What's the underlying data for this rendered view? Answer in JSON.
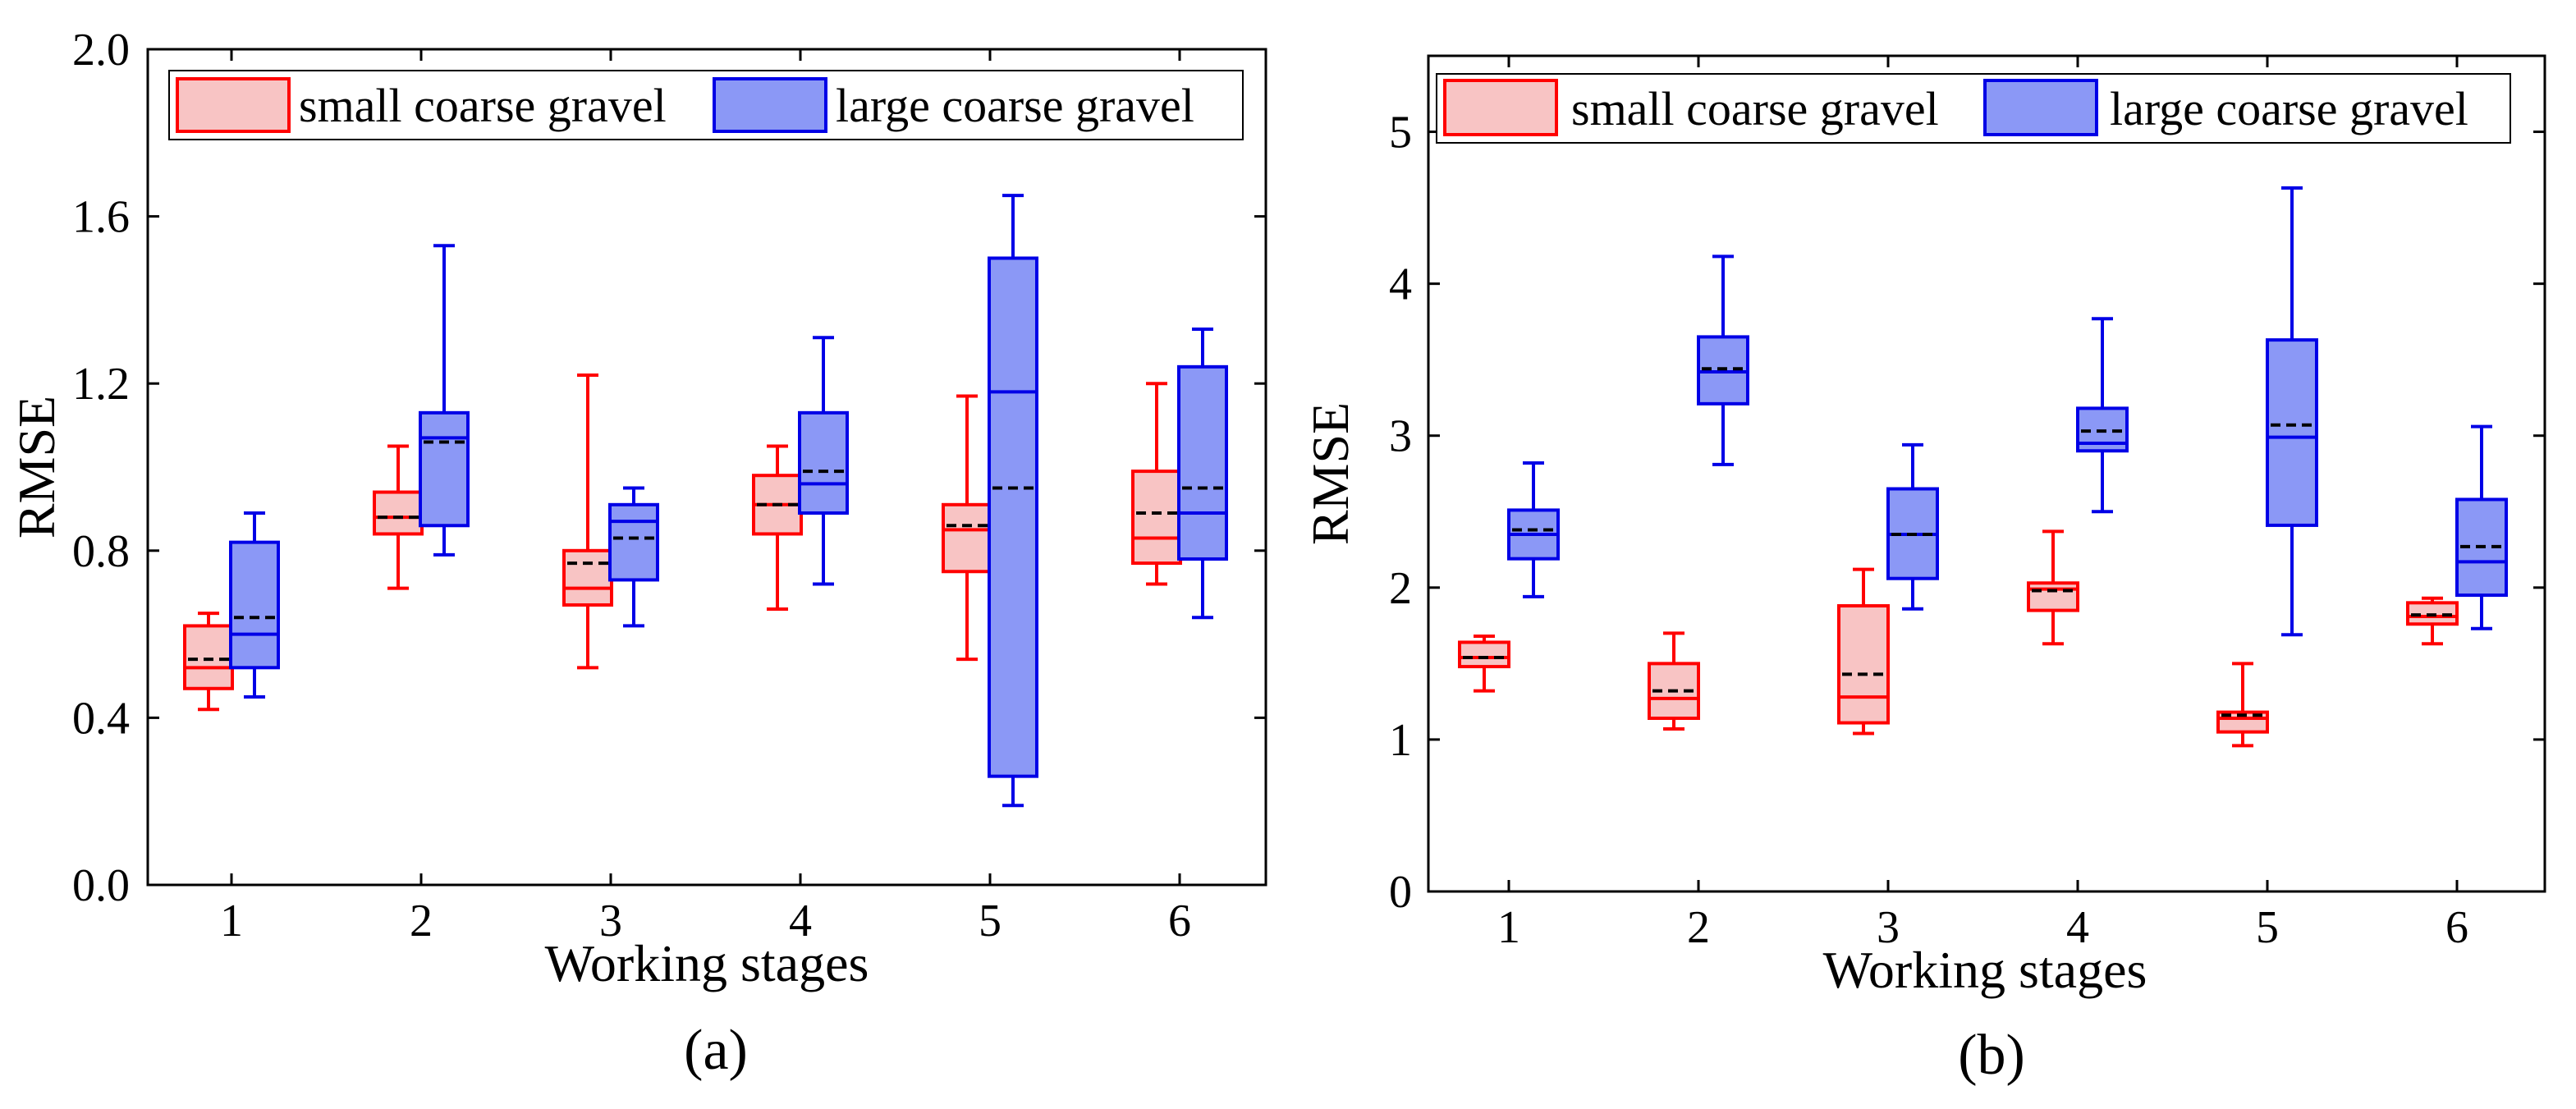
{
  "colors": {
    "small_stroke": "#ff0000",
    "small_fill": "#f8c4c4",
    "large_stroke": "#0000e6",
    "large_fill": "#8b98f6"
  },
  "chart_data": [
    {
      "type": "box",
      "caption": "(a)",
      "xlabel": "Working stages",
      "ylabel": "RMSE",
      "categories": [
        "1",
        "2",
        "3",
        "4",
        "5",
        "6"
      ],
      "ylim": [
        0.0,
        2.0
      ],
      "yticks": [
        0.0,
        0.4,
        0.8,
        1.2,
        1.6,
        2.0
      ],
      "ytick_labels": [
        "0.0",
        "0.4",
        "0.8",
        "1.2",
        "1.6",
        "2.0"
      ],
      "legend": {
        "placement": "top",
        "entries": [
          "small coarse gravel",
          "large coarse gravel"
        ]
      },
      "series": [
        {
          "name": "small coarse gravel",
          "color": "#ff0000",
          "fill": "#f8c4c4",
          "boxes": [
            {
              "min": 0.42,
              "q1": 0.47,
              "median": 0.52,
              "q3": 0.62,
              "max": 0.65,
              "mean": 0.54
            },
            {
              "min": 0.71,
              "q1": 0.84,
              "median": 0.88,
              "q3": 0.94,
              "max": 1.05,
              "mean": 0.88
            },
            {
              "min": 0.52,
              "q1": 0.67,
              "median": 0.71,
              "q3": 0.8,
              "max": 1.22,
              "mean": 0.77
            },
            {
              "min": 0.66,
              "q1": 0.84,
              "median": 0.91,
              "q3": 0.98,
              "max": 1.05,
              "mean": 0.91
            },
            {
              "min": 0.54,
              "q1": 0.75,
              "median": 0.85,
              "q3": 0.91,
              "max": 1.17,
              "mean": 0.86
            },
            {
              "min": 0.72,
              "q1": 0.77,
              "median": 0.83,
              "q3": 0.99,
              "max": 1.2,
              "mean": 0.89
            }
          ]
        },
        {
          "name": "large coarse gravel",
          "color": "#0000e6",
          "fill": "#8b98f6",
          "boxes": [
            {
              "min": 0.45,
              "q1": 0.52,
              "median": 0.6,
              "q3": 0.82,
              "max": 0.89,
              "mean": 0.64
            },
            {
              "min": 0.79,
              "q1": 0.86,
              "median": 1.07,
              "q3": 1.13,
              "max": 1.53,
              "mean": 1.06
            },
            {
              "min": 0.62,
              "q1": 0.73,
              "median": 0.87,
              "q3": 0.91,
              "max": 0.95,
              "mean": 0.83
            },
            {
              "min": 0.72,
              "q1": 0.89,
              "median": 0.96,
              "q3": 1.13,
              "max": 1.31,
              "mean": 0.99
            },
            {
              "min": 0.19,
              "q1": 0.26,
              "median": 1.18,
              "q3": 1.5,
              "max": 1.65,
              "mean": 0.95
            },
            {
              "min": 0.64,
              "q1": 0.78,
              "median": 0.89,
              "q3": 1.24,
              "max": 1.33,
              "mean": 0.95
            }
          ]
        }
      ]
    },
    {
      "type": "box",
      "caption": "(b)",
      "xlabel": "Working stages",
      "ylabel": "RMSE",
      "categories": [
        "1",
        "2",
        "3",
        "4",
        "5",
        "6"
      ],
      "ylim": [
        0,
        5.5
      ],
      "yticks": [
        0,
        1,
        2,
        3,
        4,
        5
      ],
      "ytick_labels": [
        "0",
        "1",
        "2",
        "3",
        "4",
        "5"
      ],
      "legend": {
        "placement": "top",
        "entries": [
          "small coarse gravel",
          "large coarse gravel"
        ]
      },
      "series": [
        {
          "name": "small coarse gravel",
          "color": "#ff0000",
          "fill": "#f8c4c4",
          "boxes": [
            {
              "min": 1.32,
              "q1": 1.48,
              "median": 1.54,
              "q3": 1.64,
              "max": 1.68,
              "mean": 1.54
            },
            {
              "min": 1.07,
              "q1": 1.14,
              "median": 1.27,
              "q3": 1.5,
              "max": 1.7,
              "mean": 1.32
            },
            {
              "min": 1.04,
              "q1": 1.11,
              "median": 1.28,
              "q3": 1.88,
              "max": 2.12,
              "mean": 1.43
            },
            {
              "min": 1.63,
              "q1": 1.85,
              "median": 1.99,
              "q3": 2.03,
              "max": 2.37,
              "mean": 1.98
            },
            {
              "min": 0.96,
              "q1": 1.05,
              "median": 1.14,
              "q3": 1.18,
              "max": 1.5,
              "mean": 1.16
            },
            {
              "min": 1.63,
              "q1": 1.76,
              "median": 1.81,
              "q3": 1.9,
              "max": 1.93,
              "mean": 1.82
            }
          ]
        },
        {
          "name": "large coarse gravel",
          "color": "#0000e6",
          "fill": "#8b98f6",
          "boxes": [
            {
              "min": 1.94,
              "q1": 2.19,
              "median": 2.35,
              "q3": 2.51,
              "max": 2.82,
              "mean": 2.38
            },
            {
              "min": 2.81,
              "q1": 3.21,
              "median": 3.42,
              "q3": 3.65,
              "max": 4.18,
              "mean": 3.44
            },
            {
              "min": 1.86,
              "q1": 2.06,
              "median": 2.35,
              "q3": 2.65,
              "max": 2.94,
              "mean": 2.35
            },
            {
              "min": 2.5,
              "q1": 2.9,
              "median": 2.95,
              "q3": 3.18,
              "max": 3.77,
              "mean": 3.03
            },
            {
              "min": 1.69,
              "q1": 2.41,
              "median": 2.99,
              "q3": 3.63,
              "max": 4.63,
              "mean": 3.07
            },
            {
              "min": 1.73,
              "q1": 1.95,
              "median": 2.17,
              "q3": 2.58,
              "max": 3.06,
              "mean": 2.27
            }
          ]
        }
      ]
    }
  ]
}
